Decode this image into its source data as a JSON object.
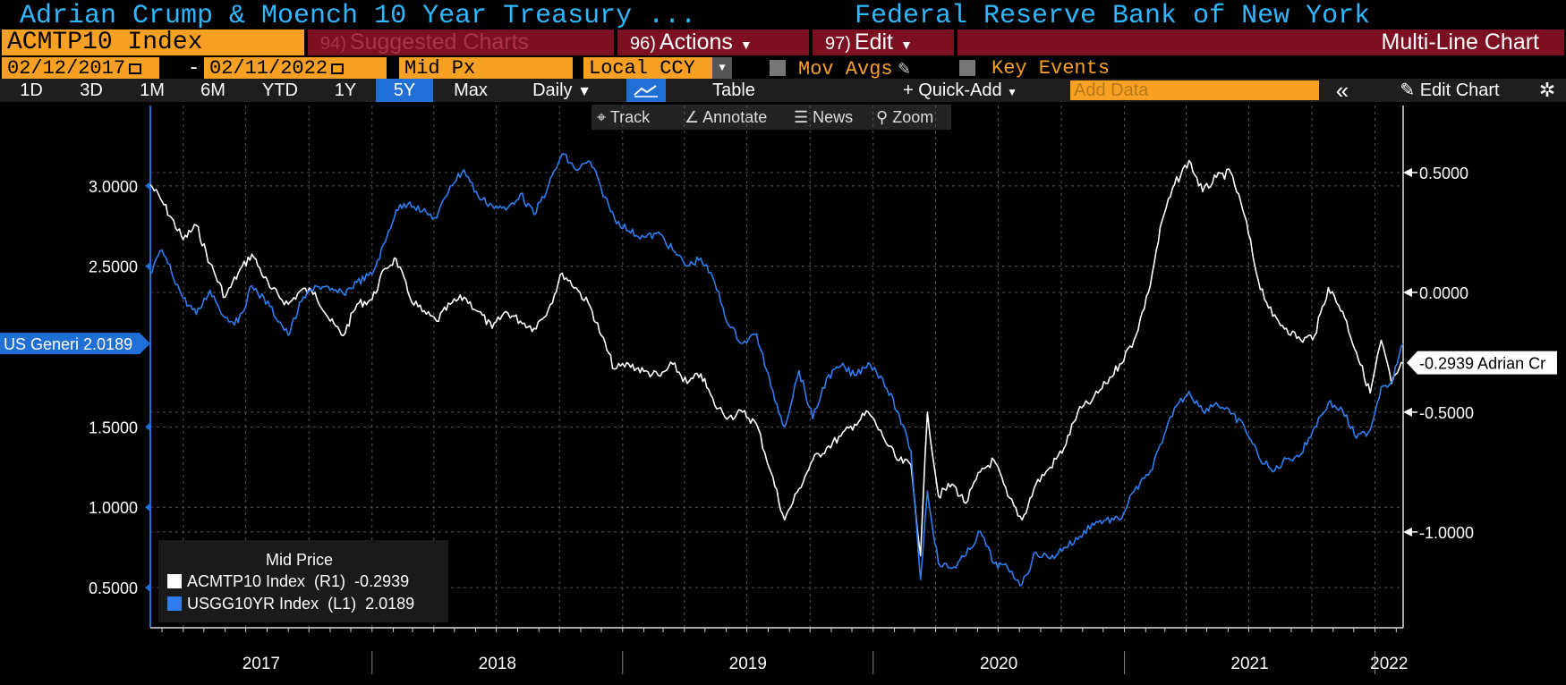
{
  "header": {
    "title_left": "Adrian Crump & Moench 10 Year Treasury ...",
    "title_right": "Federal Reserve Bank of New York"
  },
  "toolbar": {
    "ticker": "ACMTP10 Index",
    "suggested_num": "94)",
    "suggested_label": "Suggested Charts",
    "actions_num": "96)",
    "actions_label": "Actions",
    "edit_num": "97)",
    "edit_label": "Edit",
    "chart_type": "Multi-Line Chart",
    "start_date": "02/12/2017",
    "end_date": "02/11/2022",
    "price_field": "Mid Px",
    "currency": "Local CCY",
    "mov_avgs": "Mov Avgs",
    "key_events": "Key Events",
    "periods": [
      "1D",
      "3D",
      "1M",
      "6M",
      "YTD",
      "1Y",
      "5Y",
      "Max"
    ],
    "active_period": "5Y",
    "frequency": "Daily",
    "table_label": "Table",
    "quick_add": "+ Quick-Add",
    "add_data_placeholder": "Add Data",
    "collapse": "«",
    "edit_chart": "Edit Chart",
    "track": "Track",
    "annotate": "Annotate",
    "news": "News",
    "zoom": "Zoom"
  },
  "legend": {
    "title": "Mid Price",
    "row1": "ACMTP10 Index  (R1)  -0.2939",
    "row2": "USGG10YR Index  (L1)  2.0189"
  },
  "chart_data": {
    "type": "line",
    "x_range": [
      "2017-02-12",
      "2022-02-11"
    ],
    "x_ticks": [
      "2017",
      "2018",
      "2019",
      "2020",
      "2021",
      "2022"
    ],
    "y_left": {
      "ticks": [
        "3.0000",
        "2.5000",
        "1.5000",
        "1.0000",
        "0.5000"
      ],
      "range": [
        0.25,
        3.5
      ]
    },
    "y_right": {
      "ticks": [
        "0.5000",
        "0.0000",
        "-0.5000",
        "-1.0000"
      ],
      "range": [
        -1.4,
        0.78
      ]
    },
    "grid": true,
    "legend_position": "bottom-left",
    "left_label": "US Generi 2.0189",
    "right_label": "-0.2939 Adrian Cr",
    "series": [
      {
        "name": "ACMTP10 Index (R1)",
        "axis": "right",
        "color": "#ffffff",
        "last": -0.2939,
        "points": [
          [
            "2017-02-12",
            0.45
          ],
          [
            "2017-03-01",
            0.38
          ],
          [
            "2017-04-01",
            0.22
          ],
          [
            "2017-04-20",
            0.28
          ],
          [
            "2017-05-10",
            0.12
          ],
          [
            "2017-06-01",
            -0.02
          ],
          [
            "2017-06-20",
            0.08
          ],
          [
            "2017-07-10",
            0.16
          ],
          [
            "2017-08-05",
            0.02
          ],
          [
            "2017-09-01",
            -0.05
          ],
          [
            "2017-09-20",
            0.01
          ],
          [
            "2017-10-10",
            0.0
          ],
          [
            "2017-11-01",
            -0.12
          ],
          [
            "2017-11-20",
            -0.18
          ],
          [
            "2017-12-10",
            -0.05
          ],
          [
            "2018-01-01",
            -0.03
          ],
          [
            "2018-01-20",
            0.1
          ],
          [
            "2018-02-05",
            0.14
          ],
          [
            "2018-02-25",
            -0.02
          ],
          [
            "2018-03-15",
            -0.08
          ],
          [
            "2018-04-05",
            -0.12
          ],
          [
            "2018-04-25",
            -0.05
          ],
          [
            "2018-05-15",
            -0.02
          ],
          [
            "2018-06-05",
            -0.08
          ],
          [
            "2018-06-25",
            -0.15
          ],
          [
            "2018-07-15",
            -0.08
          ],
          [
            "2018-08-05",
            -0.12
          ],
          [
            "2018-08-25",
            -0.15
          ],
          [
            "2018-09-15",
            -0.07
          ],
          [
            "2018-10-05",
            0.08
          ],
          [
            "2018-10-25",
            0.02
          ],
          [
            "2018-11-15",
            -0.06
          ],
          [
            "2018-12-01",
            -0.18
          ],
          [
            "2018-12-20",
            -0.32
          ],
          [
            "2019-01-10",
            -0.3
          ],
          [
            "2019-02-01",
            -0.33
          ],
          [
            "2019-02-25",
            -0.35
          ],
          [
            "2019-03-15",
            -0.3
          ],
          [
            "2019-04-05",
            -0.38
          ],
          [
            "2019-04-25",
            -0.34
          ],
          [
            "2019-05-15",
            -0.47
          ],
          [
            "2019-06-05",
            -0.52
          ],
          [
            "2019-06-25",
            -0.5
          ],
          [
            "2019-07-15",
            -0.55
          ],
          [
            "2019-08-05",
            -0.75
          ],
          [
            "2019-08-25",
            -0.95
          ],
          [
            "2019-09-15",
            -0.82
          ],
          [
            "2019-10-05",
            -0.7
          ],
          [
            "2019-10-25",
            -0.65
          ],
          [
            "2019-11-15",
            -0.6
          ],
          [
            "2019-12-05",
            -0.55
          ],
          [
            "2019-12-25",
            -0.5
          ],
          [
            "2020-01-15",
            -0.6
          ],
          [
            "2020-02-05",
            -0.7
          ],
          [
            "2020-02-25",
            -0.72
          ],
          [
            "2020-03-10",
            -1.1
          ],
          [
            "2020-03-20",
            -0.5
          ],
          [
            "2020-04-05",
            -0.85
          ],
          [
            "2020-04-25",
            -0.8
          ],
          [
            "2020-05-15",
            -0.88
          ],
          [
            "2020-06-05",
            -0.75
          ],
          [
            "2020-06-25",
            -0.7
          ],
          [
            "2020-07-15",
            -0.85
          ],
          [
            "2020-08-05",
            -0.95
          ],
          [
            "2020-08-25",
            -0.8
          ],
          [
            "2020-09-15",
            -0.73
          ],
          [
            "2020-10-05",
            -0.65
          ],
          [
            "2020-10-25",
            -0.5
          ],
          [
            "2020-11-15",
            -0.45
          ],
          [
            "2020-12-05",
            -0.38
          ],
          [
            "2020-12-25",
            -0.3
          ],
          [
            "2021-01-15",
            -0.2
          ],
          [
            "2021-02-05",
            0.0
          ],
          [
            "2021-02-25",
            0.3
          ],
          [
            "2021-03-15",
            0.45
          ],
          [
            "2021-04-05",
            0.55
          ],
          [
            "2021-04-25",
            0.42
          ],
          [
            "2021-05-15",
            0.48
          ],
          [
            "2021-06-05",
            0.5
          ],
          [
            "2021-06-25",
            0.32
          ],
          [
            "2021-07-15",
            0.05
          ],
          [
            "2021-08-05",
            -0.1
          ],
          [
            "2021-08-25",
            -0.15
          ],
          [
            "2021-09-15",
            -0.2
          ],
          [
            "2021-10-05",
            -0.18
          ],
          [
            "2021-10-25",
            0.02
          ],
          [
            "2021-11-15",
            -0.08
          ],
          [
            "2021-12-05",
            -0.25
          ],
          [
            "2021-12-25",
            -0.42
          ],
          [
            "2022-01-10",
            -0.2
          ],
          [
            "2022-01-25",
            -0.38
          ],
          [
            "2022-02-11",
            -0.2939
          ]
        ]
      },
      {
        "name": "USGG10YR Index (L1)",
        "axis": "left",
        "color": "#2f7df0",
        "last": 2.0189,
        "points": [
          [
            "2017-02-12",
            2.45
          ],
          [
            "2017-03-01",
            2.6
          ],
          [
            "2017-04-01",
            2.3
          ],
          [
            "2017-04-20",
            2.2
          ],
          [
            "2017-05-10",
            2.35
          ],
          [
            "2017-06-01",
            2.18
          ],
          [
            "2017-06-20",
            2.15
          ],
          [
            "2017-07-10",
            2.38
          ],
          [
            "2017-08-05",
            2.25
          ],
          [
            "2017-09-01",
            2.07
          ],
          [
            "2017-09-20",
            2.28
          ],
          [
            "2017-10-10",
            2.38
          ],
          [
            "2017-11-01",
            2.35
          ],
          [
            "2017-11-20",
            2.33
          ],
          [
            "2017-12-10",
            2.4
          ],
          [
            "2018-01-01",
            2.45
          ],
          [
            "2018-01-20",
            2.65
          ],
          [
            "2018-02-05",
            2.85
          ],
          [
            "2018-02-25",
            2.9
          ],
          [
            "2018-03-15",
            2.84
          ],
          [
            "2018-04-05",
            2.8
          ],
          [
            "2018-04-25",
            3.0
          ],
          [
            "2018-05-15",
            3.1
          ],
          [
            "2018-06-05",
            2.93
          ],
          [
            "2018-06-25",
            2.88
          ],
          [
            "2018-07-15",
            2.85
          ],
          [
            "2018-08-05",
            2.95
          ],
          [
            "2018-08-25",
            2.82
          ],
          [
            "2018-09-15",
            3.0
          ],
          [
            "2018-10-05",
            3.2
          ],
          [
            "2018-10-25",
            3.1
          ],
          [
            "2018-11-15",
            3.15
          ],
          [
            "2018-12-01",
            2.98
          ],
          [
            "2018-12-20",
            2.8
          ],
          [
            "2019-01-10",
            2.72
          ],
          [
            "2019-02-01",
            2.68
          ],
          [
            "2019-02-25",
            2.7
          ],
          [
            "2019-03-15",
            2.6
          ],
          [
            "2019-04-05",
            2.5
          ],
          [
            "2019-04-25",
            2.55
          ],
          [
            "2019-05-15",
            2.4
          ],
          [
            "2019-06-05",
            2.13
          ],
          [
            "2019-06-25",
            2.02
          ],
          [
            "2019-07-15",
            2.08
          ],
          [
            "2019-08-05",
            1.75
          ],
          [
            "2019-08-25",
            1.5
          ],
          [
            "2019-09-15",
            1.85
          ],
          [
            "2019-10-05",
            1.55
          ],
          [
            "2019-10-25",
            1.8
          ],
          [
            "2019-11-15",
            1.88
          ],
          [
            "2019-12-05",
            1.82
          ],
          [
            "2019-12-25",
            1.9
          ],
          [
            "2020-01-15",
            1.8
          ],
          [
            "2020-02-05",
            1.6
          ],
          [
            "2020-02-25",
            1.35
          ],
          [
            "2020-03-10",
            0.55
          ],
          [
            "2020-03-20",
            1.1
          ],
          [
            "2020-04-05",
            0.65
          ],
          [
            "2020-04-25",
            0.62
          ],
          [
            "2020-05-15",
            0.7
          ],
          [
            "2020-06-05",
            0.85
          ],
          [
            "2020-06-25",
            0.65
          ],
          [
            "2020-07-15",
            0.62
          ],
          [
            "2020-08-05",
            0.52
          ],
          [
            "2020-08-25",
            0.72
          ],
          [
            "2020-09-15",
            0.68
          ],
          [
            "2020-10-05",
            0.75
          ],
          [
            "2020-10-25",
            0.8
          ],
          [
            "2020-11-15",
            0.9
          ],
          [
            "2020-12-05",
            0.92
          ],
          [
            "2020-12-25",
            0.92
          ],
          [
            "2021-01-15",
            1.1
          ],
          [
            "2021-02-05",
            1.2
          ],
          [
            "2021-02-25",
            1.4
          ],
          [
            "2021-03-15",
            1.62
          ],
          [
            "2021-04-05",
            1.72
          ],
          [
            "2021-04-25",
            1.6
          ],
          [
            "2021-05-15",
            1.65
          ],
          [
            "2021-06-05",
            1.58
          ],
          [
            "2021-06-25",
            1.5
          ],
          [
            "2021-07-15",
            1.32
          ],
          [
            "2021-08-05",
            1.22
          ],
          [
            "2021-08-25",
            1.3
          ],
          [
            "2021-09-15",
            1.33
          ],
          [
            "2021-10-05",
            1.5
          ],
          [
            "2021-10-25",
            1.65
          ],
          [
            "2021-11-15",
            1.6
          ],
          [
            "2021-12-05",
            1.43
          ],
          [
            "2021-12-25",
            1.48
          ],
          [
            "2022-01-10",
            1.75
          ],
          [
            "2022-01-25",
            1.78
          ],
          [
            "2022-02-11",
            2.0189
          ]
        ]
      }
    ]
  }
}
